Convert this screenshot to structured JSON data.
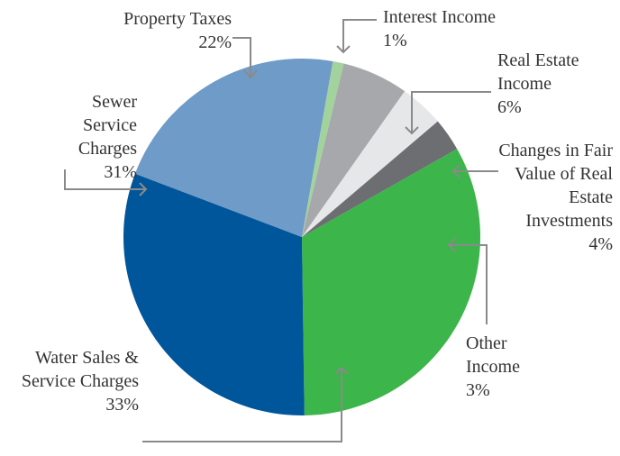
{
  "chart_data": {
    "type": "pie",
    "categories": [
      "Interest Income",
      "Real Estate Income",
      "Changes in Fair Value of Real Estate Investments",
      "Other Income",
      "Water Sales & Service Charges",
      "Sewer Service Charges",
      "Property Taxes"
    ],
    "values": [
      1,
      6,
      4,
      3,
      33,
      31,
      22
    ],
    "value_labels": [
      "1%",
      "6%",
      "4%",
      "3%",
      "33%",
      "31%",
      "22%"
    ],
    "colors": [
      "#a3d39c",
      "#a6a8ab",
      "#e6e7e8",
      "#6d6e71",
      "#3cb54a",
      "#00569a",
      "#6f9bc8"
    ]
  }
}
